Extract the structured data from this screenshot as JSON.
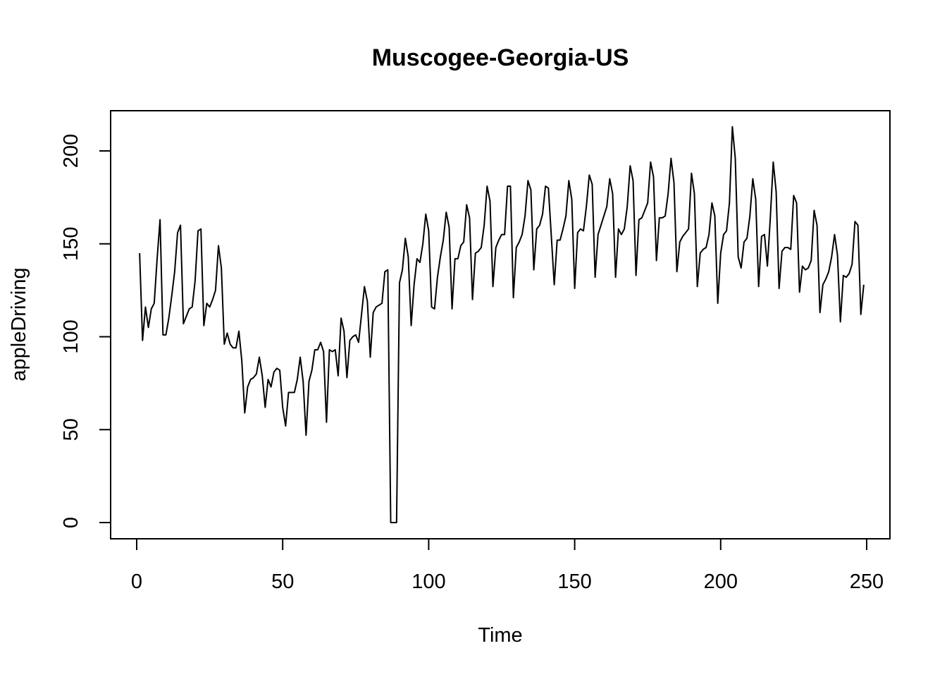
{
  "chart_data": {
    "type": "line",
    "title": "Muscogee-Georgia-US",
    "xlabel": "Time",
    "ylabel": "appleDriving",
    "xlim": [
      1,
      248
    ],
    "ylim": [
      0,
      213
    ],
    "x_ticks": [
      0,
      50,
      100,
      150,
      200,
      250
    ],
    "y_ticks": [
      0,
      50,
      100,
      150,
      200
    ],
    "x_tick_labels": [
      "0",
      "50",
      "100",
      "150",
      "200",
      "250"
    ],
    "y_tick_labels": [
      "0",
      "50",
      "100",
      "150",
      "200"
    ],
    "grid": false,
    "legend": "none",
    "line_color": "#000000",
    "series": [
      {
        "x_start": 1,
        "values": [
          145,
          98,
          116,
          105,
          115,
          118,
          142,
          163,
          101,
          101,
          110,
          122,
          135,
          156,
          160,
          107,
          111,
          115,
          116,
          130,
          157,
          158,
          106,
          118,
          116,
          120,
          125,
          149,
          137,
          96,
          102,
          96,
          94,
          94,
          103,
          87,
          59,
          73,
          77,
          78,
          80,
          89,
          79,
          62,
          77,
          73,
          81,
          83,
          82,
          62,
          52,
          70,
          70,
          70,
          77,
          89,
          76,
          47,
          76,
          82,
          93,
          93,
          97,
          92,
          54,
          93,
          92,
          93,
          79,
          110,
          103,
          78,
          98,
          100,
          101,
          97,
          112,
          127,
          119,
          89,
          113,
          116,
          117,
          118,
          135,
          136,
          0,
          0,
          0,
          129,
          136,
          153,
          143,
          106,
          128,
          142,
          140,
          150,
          166,
          157,
          116,
          115,
          132,
          143,
          152,
          167,
          159,
          115,
          142,
          142,
          149,
          151,
          171,
          164,
          120,
          145,
          146,
          148,
          160,
          181,
          173,
          127,
          148,
          152,
          155,
          155,
          181,
          181,
          121,
          148,
          151,
          155,
          165,
          184,
          179,
          136,
          158,
          160,
          166,
          181,
          180,
          154,
          128,
          152,
          152,
          158,
          165,
          184,
          174,
          126,
          156,
          158,
          157,
          170,
          187,
          182,
          132,
          155,
          160,
          165,
          170,
          185,
          177,
          132,
          158,
          155,
          158,
          170,
          192,
          184,
          133,
          163,
          164,
          168,
          172,
          194,
          186,
          141,
          164,
          164,
          165,
          177,
          196,
          183,
          135,
          151,
          154,
          156,
          158,
          188,
          177,
          127,
          145,
          147,
          148,
          155,
          172,
          165,
          118,
          145,
          155,
          157,
          172,
          213,
          196,
          143,
          137,
          151,
          153,
          165,
          185,
          174,
          127,
          154,
          155,
          138,
          164,
          194,
          178,
          126,
          146,
          148,
          148,
          147,
          176,
          172,
          124,
          138,
          136,
          137,
          141,
          168,
          160,
          113,
          128,
          131,
          135,
          143,
          155,
          144,
          108,
          133,
          132,
          134,
          139,
          162,
          160,
          112,
          128
        ]
      }
    ]
  }
}
